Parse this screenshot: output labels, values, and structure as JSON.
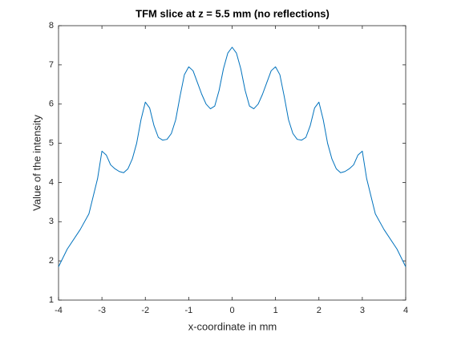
{
  "chart_data": {
    "type": "line",
    "title": "TFM slice at z = 5.5 mm (no reflections)",
    "x_label": "x-coordinate in mm",
    "y_label": "Value of the intensity",
    "x": [
      -4,
      -3.8,
      -3.5,
      -3.3,
      -3.1,
      -3,
      -2.9,
      -2.8,
      -2.7,
      -2.6,
      -2.5,
      -2.4,
      -2.3,
      -2.2,
      -2.1,
      -2,
      -1.9,
      -1.8,
      -1.7,
      -1.6,
      -1.5,
      -1.4,
      -1.3,
      -1.2,
      -1.1,
      -1,
      -0.9,
      -0.8,
      -0.7,
      -0.6,
      -0.5,
      -0.4,
      -0.3,
      -0.2,
      -0.1,
      0,
      0.1,
      0.2,
      0.3,
      0.4,
      0.5,
      0.6,
      0.7,
      0.8,
      0.9,
      1,
      1.1,
      1.2,
      1.3,
      1.4,
      1.5,
      1.6,
      1.7,
      1.8,
      1.9,
      2,
      2.1,
      2.2,
      2.3,
      2.4,
      2.5,
      2.6,
      2.7,
      2.8,
      2.9,
      3,
      3.1,
      3.3,
      3.5,
      3.8,
      4
    ],
    "series": [
      {
        "name": "intensity",
        "color": "#0072bd",
        "values": [
          1.85,
          2.3,
          2.8,
          3.2,
          4.1,
          4.8,
          4.7,
          4.45,
          4.35,
          4.28,
          4.25,
          4.35,
          4.6,
          5.0,
          5.6,
          6.05,
          5.9,
          5.45,
          5.15,
          5.08,
          5.1,
          5.25,
          5.6,
          6.2,
          6.75,
          6.95,
          6.85,
          6.55,
          6.25,
          6.0,
          5.88,
          5.95,
          6.35,
          6.9,
          7.3,
          7.45,
          7.3,
          6.9,
          6.35,
          5.95,
          5.88,
          6.0,
          6.25,
          6.55,
          6.85,
          6.95,
          6.75,
          6.2,
          5.6,
          5.25,
          5.1,
          5.08,
          5.15,
          5.45,
          5.9,
          6.05,
          5.6,
          5.0,
          4.6,
          4.35,
          4.25,
          4.28,
          4.35,
          4.45,
          4.7,
          4.8,
          4.1,
          3.2,
          2.8,
          2.3,
          1.85
        ]
      }
    ],
    "xlim": [
      -4,
      4
    ],
    "ylim": [
      1,
      8
    ],
    "xticks": [
      -4,
      -3,
      -2,
      -1,
      0,
      1,
      2,
      3,
      4
    ],
    "yticks": [
      1,
      2,
      3,
      4,
      5,
      6,
      7,
      8
    ],
    "grid": false
  }
}
